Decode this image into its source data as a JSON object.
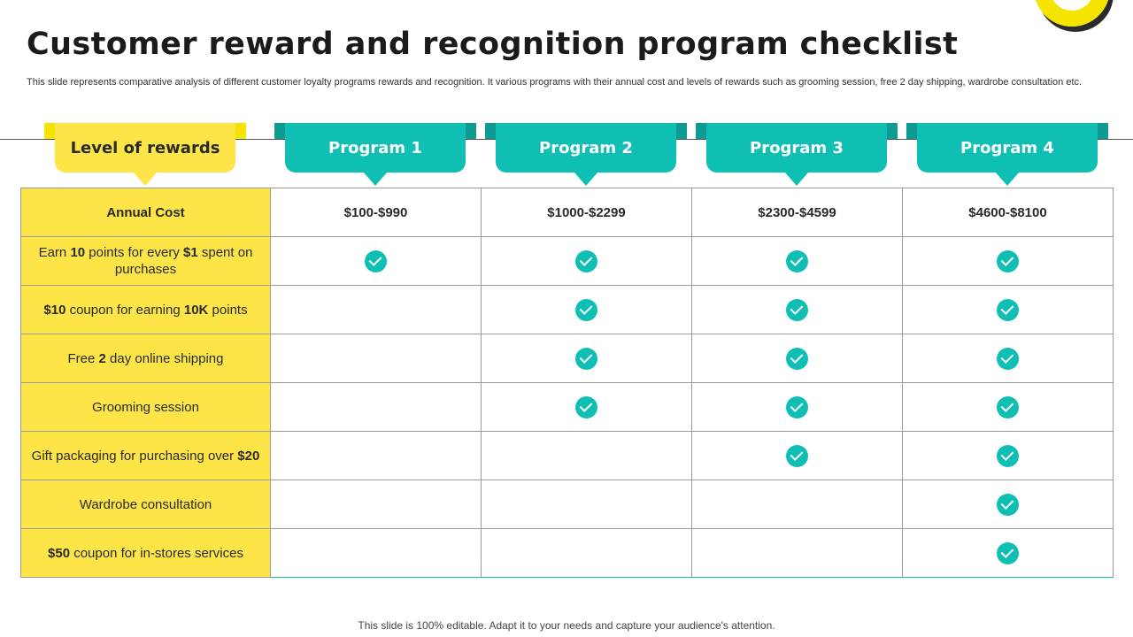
{
  "title": "Customer reward and recognition program checklist",
  "subtitle": "This slide represents comparative analysis of different customer loyalty programs rewards and recognition. It various programs with their annual cost and levels of rewards such as grooming session, free 2 day shipping, wardrobe consultation etc.",
  "header": {
    "level_label": "Level of rewards",
    "programs": [
      "Program 1",
      "Program 2",
      "Program 3",
      "Program 4"
    ]
  },
  "rows": [
    {
      "label_html": "Annual Cost",
      "cells": [
        "$100-$990",
        "$1000-$2299",
        "$2300-$4599",
        "$4600-$8100"
      ]
    },
    {
      "label_html": "Earn <b>10</b> points for every <b>$1</b> spent on purchases",
      "cells": [
        true,
        true,
        true,
        true
      ]
    },
    {
      "label_html": "<b>$10</b> coupon for earning <b>10K</b> points",
      "cells": [
        false,
        true,
        true,
        true
      ]
    },
    {
      "label_html": "Free <b>2</b> day online shipping",
      "cells": [
        false,
        true,
        true,
        true
      ]
    },
    {
      "label_html": "Grooming session",
      "cells": [
        false,
        true,
        true,
        true
      ]
    },
    {
      "label_html": "Gift packaging for purchasing over <b>$20</b>",
      "cells": [
        false,
        false,
        true,
        true
      ]
    },
    {
      "label_html": "Wardrobe consultation",
      "cells": [
        false,
        false,
        false,
        true
      ]
    },
    {
      "label_html": "<b>$50</b> coupon for in-stores services",
      "cells": [
        false,
        false,
        false,
        true
      ]
    }
  ],
  "footer": "This slide is 100% editable. Adapt it to your needs and capture your audience's attention.",
  "colors": {
    "accent_yellow": "#fde547",
    "accent_teal": "#10bfb4"
  },
  "icons": {
    "check": "check-circle-icon",
    "decor": "decorative-ring-icon"
  }
}
